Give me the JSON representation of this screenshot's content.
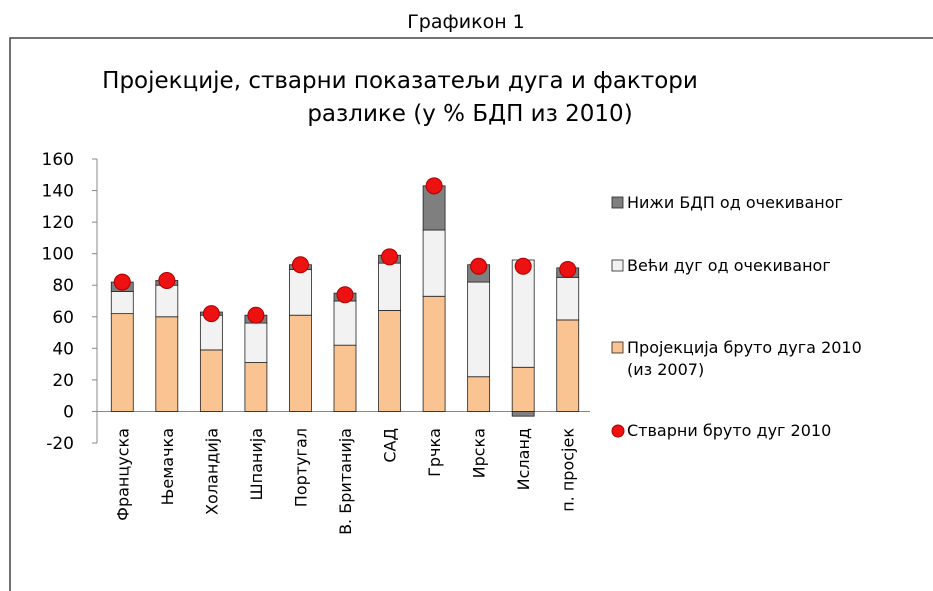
{
  "header": "Графикон 1",
  "chart_data": {
    "type": "stacked-bar",
    "title": [
      "Пројекције, стварни показатељи дуга и фактори",
      "разлике   (у % БДП из 2010)"
    ],
    "categories": [
      "Француска",
      "Њемачка",
      "Холандија",
      "Шпанија",
      "Португал",
      "В. Британија",
      "САД",
      "Грчка",
      "Ирска",
      "Исланд",
      "п. просјек"
    ],
    "series": [
      {
        "name": "Пројекција бруто дуга 2010 (из 2007)",
        "color": "#fac392",
        "values": [
          62,
          60,
          39,
          31,
          61,
          42,
          64,
          73,
          22,
          28,
          58
        ]
      },
      {
        "name": "Већи дуг од очекиваног",
        "color": "#f2f2f2",
        "values": [
          14,
          20,
          22,
          25,
          29,
          28,
          30,
          42,
          60,
          68,
          27
        ]
      },
      {
        "name": "Нижи БДП од очекиваног",
        "color": "#7f7f7f",
        "values": [
          6,
          3,
          2,
          5,
          3,
          5,
          5,
          28,
          11,
          -3,
          6
        ]
      }
    ],
    "points": {
      "name": "Стварни бруто дуг 2010",
      "color": "#ee1111",
      "values": [
        82,
        83,
        62,
        61,
        93,
        74,
        98,
        143,
        92,
        92,
        90
      ]
    },
    "ylim": [
      -20,
      160
    ],
    "yticks": [
      -20,
      0,
      20,
      40,
      60,
      80,
      100,
      120,
      140,
      160
    ]
  }
}
